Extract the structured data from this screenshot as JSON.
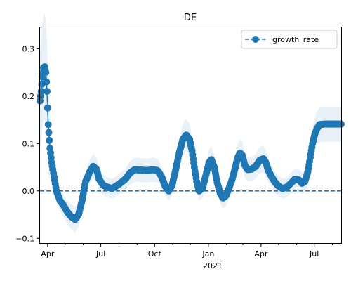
{
  "chart_data": {
    "type": "line",
    "title": "DE",
    "xlabel": "",
    "ylabel": "",
    "x_range": [
      "2020-03-19",
      "2021-08-16"
    ],
    "ylim": [
      -0.11,
      0.345
    ],
    "x_ticks": [
      {
        "date": "2020-04-01",
        "label": "Apr"
      },
      {
        "date": "2020-07-01",
        "label": "Jul"
      },
      {
        "date": "2020-10-01",
        "label": "Oct"
      },
      {
        "date": "2021-01-01",
        "label": "Jan"
      },
      {
        "date": "2021-04-01",
        "label": "Apr"
      },
      {
        "date": "2021-07-01",
        "label": "Jul"
      }
    ],
    "x_minor_ticks": [
      "2020-05-01",
      "2020-06-01",
      "2020-08-01",
      "2020-09-01",
      "2020-11-01",
      "2020-12-01",
      "2021-02-01",
      "2021-03-01",
      "2021-05-01",
      "2021-06-01",
      "2021-08-01"
    ],
    "x_year_label": "2021",
    "y_ticks": [
      -0.1,
      0.0,
      0.1,
      0.2,
      0.3
    ],
    "y_tick_labels": [
      "−0.1",
      "0.0",
      "0.1",
      "0.2",
      "0.3"
    ],
    "reference_line": {
      "y": 0.0,
      "style": "dashed"
    },
    "legend": {
      "position": "top-right",
      "entries": [
        "growth_rate"
      ]
    },
    "colors": {
      "line": "#1f77b4",
      "band": "#1f77b4",
      "reference": "#1f77b4"
    },
    "series": [
      {
        "name": "growth_rate",
        "points": [
          [
            "2020-03-19",
            0.19
          ],
          [
            "2020-03-21",
            0.21
          ],
          [
            "2020-03-23",
            0.24
          ],
          [
            "2020-03-25",
            0.26
          ],
          [
            "2020-03-27",
            0.262
          ],
          [
            "2020-03-29",
            0.25
          ],
          [
            "2020-03-31",
            0.21
          ],
          [
            "2020-04-02",
            0.14
          ],
          [
            "2020-04-05",
            0.09
          ],
          [
            "2020-04-08",
            0.06
          ],
          [
            "2020-04-12",
            0.03
          ],
          [
            "2020-04-16",
            0.0
          ],
          [
            "2020-04-22",
            -0.02
          ],
          [
            "2020-04-28",
            -0.03
          ],
          [
            "2020-05-05",
            -0.045
          ],
          [
            "2020-05-12",
            -0.055
          ],
          [
            "2020-05-18",
            -0.06
          ],
          [
            "2020-05-24",
            -0.05
          ],
          [
            "2020-05-30",
            -0.02
          ],
          [
            "2020-06-05",
            0.02
          ],
          [
            "2020-06-12",
            0.04
          ],
          [
            "2020-06-18",
            0.052
          ],
          [
            "2020-06-24",
            0.045
          ],
          [
            "2020-06-28",
            0.025
          ],
          [
            "2020-07-05",
            0.012
          ],
          [
            "2020-07-12",
            0.008
          ],
          [
            "2020-07-20",
            0.005
          ],
          [
            "2020-07-27",
            0.01
          ],
          [
            "2020-08-05",
            0.018
          ],
          [
            "2020-08-12",
            0.025
          ],
          [
            "2020-08-20",
            0.038
          ],
          [
            "2020-08-28",
            0.045
          ],
          [
            "2020-09-08",
            0.044
          ],
          [
            "2020-09-18",
            0.043
          ],
          [
            "2020-09-28",
            0.045
          ],
          [
            "2020-10-06",
            0.043
          ],
          [
            "2020-10-13",
            0.03
          ],
          [
            "2020-10-19",
            0.01
          ],
          [
            "2020-10-25",
            0.0
          ],
          [
            "2020-10-31",
            0.012
          ],
          [
            "2020-11-06",
            0.045
          ],
          [
            "2020-11-12",
            0.08
          ],
          [
            "2020-11-18",
            0.108
          ],
          [
            "2020-11-24",
            0.118
          ],
          [
            "2020-11-30",
            0.108
          ],
          [
            "2020-12-04",
            0.085
          ],
          [
            "2020-12-08",
            0.05
          ],
          [
            "2020-12-12",
            0.02
          ],
          [
            "2020-12-16",
            0.0
          ],
          [
            "2020-12-22",
            0.006
          ],
          [
            "2020-12-27",
            0.03
          ],
          [
            "2021-01-02",
            0.06
          ],
          [
            "2021-01-06",
            0.066
          ],
          [
            "2021-01-11",
            0.05
          ],
          [
            "2021-01-16",
            0.018
          ],
          [
            "2021-01-21",
            -0.005
          ],
          [
            "2021-01-26",
            -0.015
          ],
          [
            "2021-01-31",
            -0.01
          ],
          [
            "2021-02-05",
            0.005
          ],
          [
            "2021-02-10",
            0.022
          ],
          [
            "2021-02-15",
            0.045
          ],
          [
            "2021-02-20",
            0.07
          ],
          [
            "2021-02-24",
            0.08
          ],
          [
            "2021-02-28",
            0.075
          ],
          [
            "2021-03-04",
            0.055
          ],
          [
            "2021-03-09",
            0.045
          ],
          [
            "2021-03-16",
            0.046
          ],
          [
            "2021-03-23",
            0.052
          ],
          [
            "2021-03-30",
            0.065
          ],
          [
            "2021-04-05",
            0.068
          ],
          [
            "2021-04-09",
            0.06
          ],
          [
            "2021-04-14",
            0.042
          ],
          [
            "2021-04-19",
            0.03
          ],
          [
            "2021-04-25",
            0.018
          ],
          [
            "2021-05-01",
            0.01
          ],
          [
            "2021-05-08",
            0.005
          ],
          [
            "2021-05-15",
            0.008
          ],
          [
            "2021-05-22",
            0.016
          ],
          [
            "2021-05-29",
            0.025
          ],
          [
            "2021-06-05",
            0.023
          ],
          [
            "2021-06-10",
            0.016
          ],
          [
            "2021-06-15",
            0.02
          ],
          [
            "2021-06-20",
            0.04
          ],
          [
            "2021-06-24",
            0.07
          ],
          [
            "2021-06-28",
            0.1
          ],
          [
            "2021-07-02",
            0.12
          ],
          [
            "2021-07-06",
            0.132
          ],
          [
            "2021-07-10",
            0.14
          ],
          [
            "2021-07-18",
            0.141
          ],
          [
            "2021-07-26",
            0.141
          ],
          [
            "2021-08-03",
            0.141
          ],
          [
            "2021-08-12",
            0.141
          ],
          [
            "2021-08-16",
            0.141
          ]
        ]
      }
    ]
  }
}
